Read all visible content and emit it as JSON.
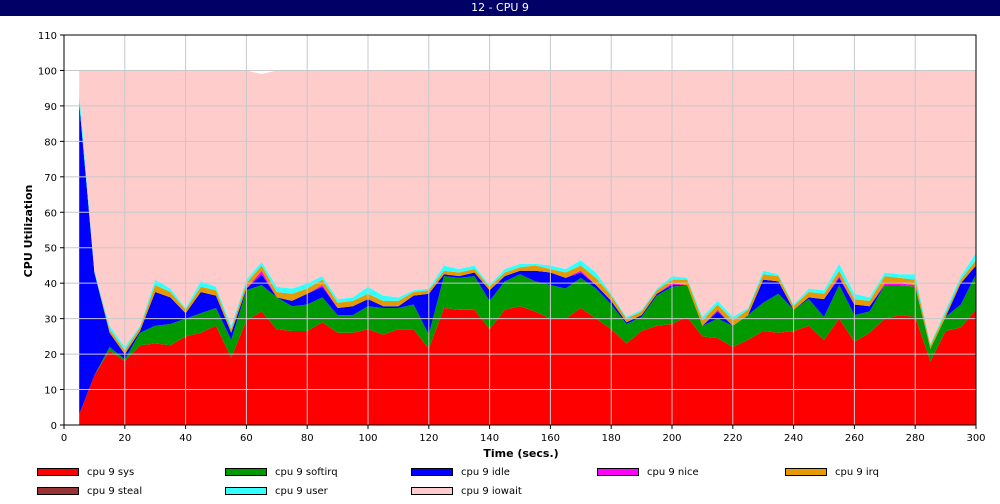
{
  "window": {
    "title": "12 - CPU 9"
  },
  "chart_data": {
    "type": "area",
    "stacked": true,
    "title": "",
    "xlabel": "Time (secs.)",
    "ylabel": "CPU Utilization",
    "xlim": [
      0,
      300
    ],
    "ylim": [
      0,
      110
    ],
    "xticks": [
      0,
      20,
      40,
      60,
      80,
      100,
      120,
      140,
      160,
      180,
      200,
      220,
      240,
      260,
      280,
      300
    ],
    "yticks": [
      0,
      10,
      20,
      30,
      40,
      50,
      60,
      70,
      80,
      90,
      100,
      110
    ],
    "grid": true,
    "legend_position": "bottom",
    "x": [
      5,
      10,
      15,
      20,
      25,
      30,
      35,
      40,
      45,
      50,
      55,
      60,
      65,
      70,
      75,
      80,
      85,
      90,
      95,
      100,
      105,
      110,
      115,
      120,
      125,
      130,
      135,
      140,
      145,
      150,
      155,
      160,
      165,
      170,
      175,
      180,
      185,
      190,
      195,
      200,
      205,
      210,
      215,
      220,
      225,
      230,
      235,
      240,
      245,
      250,
      255,
      260,
      265,
      270,
      275,
      280,
      285,
      290,
      295,
      300
    ],
    "series": [
      {
        "name": "cpu 9 sys",
        "color": "#ff0000",
        "values": [
          3,
          14,
          21,
          18,
          22.5,
          23,
          22.5,
          25,
          26,
          28,
          19,
          29.5,
          32,
          27,
          26.5,
          26.5,
          29,
          26,
          26,
          27,
          25.5,
          27,
          27,
          21.5,
          33,
          32.5,
          32.5,
          27,
          32.5,
          33.5,
          32,
          30,
          30,
          33,
          30,
          27,
          23,
          26.5,
          28,
          28.5,
          30.5,
          25,
          24.5,
          22,
          24,
          26.5,
          26,
          26.5,
          28,
          24,
          30,
          23.5,
          26,
          30,
          31,
          30.5,
          18,
          26.5,
          27.5,
          32.5
        ]
      },
      {
        "name": "cpu 9 softirq",
        "color": "#009900",
        "values": [
          0,
          0,
          1,
          0.5,
          3.5,
          5,
          6,
          5,
          5.5,
          5,
          5,
          8.5,
          7.5,
          9,
          7,
          7.5,
          7,
          5,
          5,
          6.5,
          7.5,
          6,
          7,
          4,
          9,
          9,
          9.5,
          8,
          8,
          9,
          8.5,
          9.5,
          8.5,
          8.5,
          8.5,
          7,
          5.5,
          4,
          8.5,
          10.5,
          9,
          3,
          5.5,
          6,
          7,
          8,
          11,
          6,
          7.5,
          6.5,
          9.5,
          7.5,
          6,
          9.5,
          8.5,
          8.5,
          3.5,
          4,
          6.5,
          10
        ]
      },
      {
        "name": "cpu 9 idle",
        "color": "#0000ff",
        "values": [
          88,
          29,
          4,
          1.5,
          0.5,
          9.5,
          7.5,
          1.5,
          6,
          3.5,
          2,
          0.5,
          3,
          0,
          1.5,
          3,
          3,
          2,
          2.5,
          2,
          0.5,
          0.5,
          2.5,
          11.5,
          0.5,
          0.5,
          1,
          3,
          1.5,
          1,
          3,
          3.5,
          3,
          1.5,
          1,
          1,
          0.5,
          0.5,
          0.5,
          0.5,
          0,
          0,
          2,
          0,
          0,
          6.5,
          3.5,
          0,
          0.5,
          5,
          2,
          3,
          1.5,
          0,
          0,
          0,
          0,
          0,
          6,
          2.5
        ]
      },
      {
        "name": "cpu 9 nice",
        "color": "#ff00ff",
        "values": [
          0,
          0,
          0,
          0,
          0,
          0,
          0,
          0,
          0,
          0,
          0,
          0,
          1,
          0,
          0,
          0,
          0.5,
          0,
          0,
          0,
          0,
          0,
          0,
          0,
          0,
          0,
          0,
          0,
          0,
          0,
          0,
          0,
          0,
          0.5,
          0,
          0,
          0,
          0,
          0,
          0.5,
          0,
          0,
          0.5,
          0,
          0,
          0,
          0,
          0,
          0,
          0,
          0.5,
          0,
          0,
          0.5,
          0.5,
          0.5,
          0,
          0,
          0,
          0
        ]
      },
      {
        "name": "cpu 9 irq",
        "color": "#e69900",
        "values": [
          0,
          0,
          1,
          1,
          1,
          2,
          1.5,
          1,
          1.5,
          1.5,
          1,
          1.5,
          1.5,
          1.5,
          2,
          1.5,
          1.5,
          1.5,
          1.5,
          1.5,
          1.5,
          1.5,
          1,
          1,
          1,
          1,
          1,
          1,
          1,
          1,
          1.5,
          1,
          1.5,
          1.5,
          2,
          1.5,
          1,
          1,
          1,
          1,
          1.5,
          1.5,
          1.5,
          1.5,
          1.5,
          1.5,
          1.5,
          1,
          1.5,
          1.5,
          1.5,
          1.5,
          1.5,
          2,
          1.5,
          1.5,
          1,
          1,
          1,
          1.5
        ]
      },
      {
        "name": "cpu 9 steal",
        "color": "#993333",
        "values": [
          0,
          0,
          0,
          0,
          0,
          0,
          0,
          0,
          0,
          0,
          0,
          0,
          0,
          0,
          0,
          0,
          0,
          0,
          0,
          0,
          0,
          0,
          0,
          0,
          0,
          0,
          0,
          0,
          0,
          0,
          0,
          0,
          0,
          0,
          0,
          0,
          0,
          0,
          0,
          0,
          0,
          0,
          0,
          0,
          0,
          0,
          0,
          0,
          0,
          0,
          0,
          0,
          0,
          0,
          0,
          0,
          0,
          0,
          0,
          0
        ]
      },
      {
        "name": "cpu 9 user",
        "color": "#33ffff",
        "values": [
          3,
          0.5,
          1,
          1,
          0.5,
          1.5,
          1,
          0.5,
          1.5,
          1,
          1,
          1,
          1,
          1.5,
          1.5,
          1.5,
          1,
          1,
          1,
          2,
          1.5,
          1,
          0.5,
          0.5,
          1.5,
          1,
          1,
          0.5,
          1,
          1,
          0.5,
          1,
          1,
          1.5,
          1.5,
          0.5,
          0.5,
          0.5,
          0.5,
          1,
          0.5,
          1,
          1,
          1,
          0.5,
          1,
          0.5,
          0.5,
          1,
          1,
          2,
          1.5,
          1,
          1,
          1,
          1.5,
          0.5,
          1,
          1,
          2
        ]
      },
      {
        "name": "cpu 9 iowait",
        "color": "#ffcccc",
        "values": [
          6,
          56.5,
          72,
          78,
          72,
          59,
          61.5,
          67,
          59.5,
          61,
          72,
          59,
          53,
          61,
          61.5,
          60,
          58,
          64.5,
          64,
          61,
          63.5,
          64,
          62,
          61.5,
          55,
          56,
          55,
          60.5,
          56,
          54.5,
          54.5,
          55,
          56,
          53.5,
          57,
          63,
          69.5,
          67.5,
          61.5,
          58,
          58.5,
          69.5,
          65,
          69.5,
          67,
          56.5,
          57.5,
          66,
          61.5,
          62,
          54.5,
          63,
          64,
          57,
          57.5,
          57.5,
          77,
          67.5,
          58,
          51.5
        ]
      }
    ]
  }
}
